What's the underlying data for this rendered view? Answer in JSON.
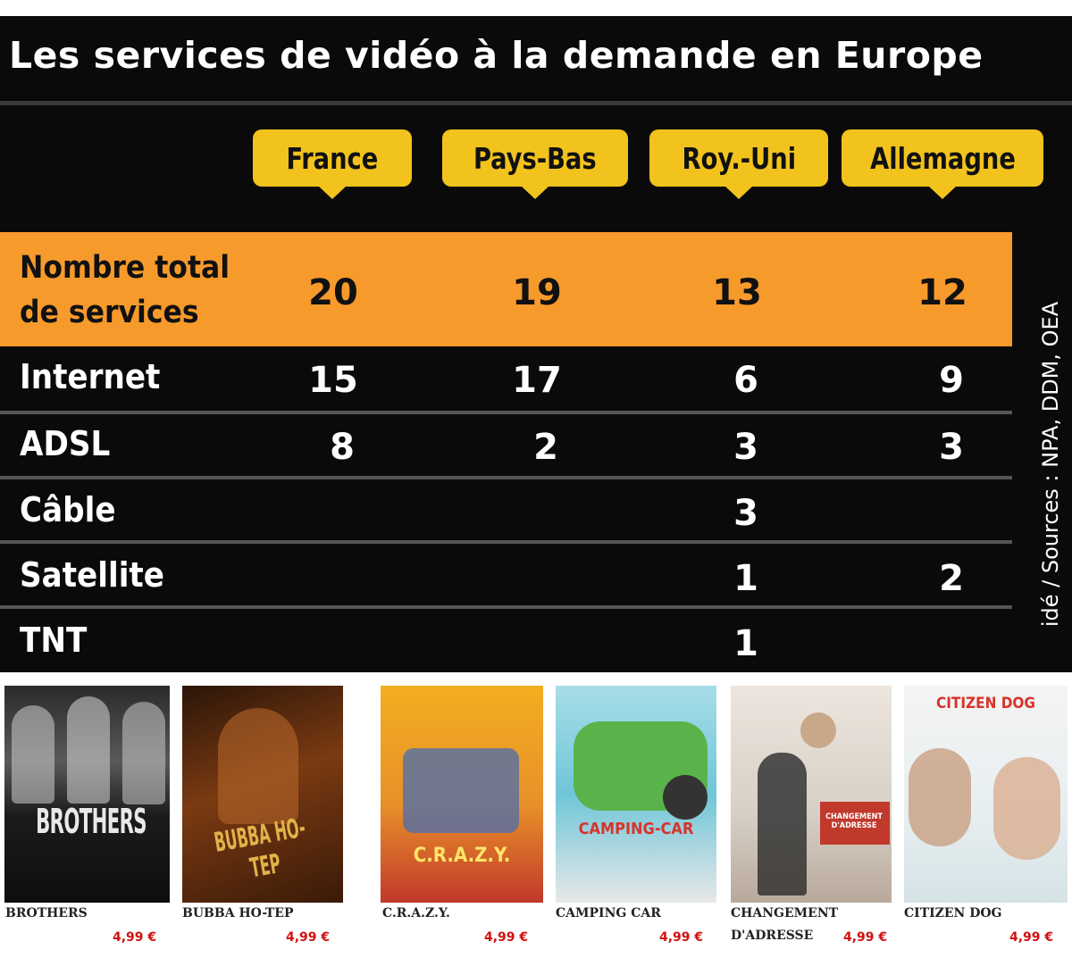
{
  "chart_data": {
    "type": "table",
    "title": "Les services de vidéo à la demande en Europe",
    "columns": [
      "France",
      "Pays-Bas",
      "Roy.-Uni",
      "Allemagne"
    ],
    "total": {
      "label_line1": "Nombre total",
      "label_line2": "de services",
      "values": [
        "20",
        "19",
        "13",
        "12"
      ]
    },
    "rows": [
      {
        "label": "Internet",
        "values": [
          "15",
          "17",
          "6",
          "9"
        ]
      },
      {
        "label": "ADSL",
        "values": [
          "8",
          "2",
          "3",
          "3"
        ]
      },
      {
        "label": "Câble",
        "values": [
          "",
          "",
          "3",
          ""
        ]
      },
      {
        "label": "Satellite",
        "values": [
          "",
          "",
          "1",
          "2"
        ]
      },
      {
        "label": "TNT",
        "values": [
          "",
          "",
          "1",
          ""
        ]
      }
    ],
    "source": "idé / Sources : NPA, DDM, OEA"
  },
  "posters": [
    {
      "caption": "BROTHERS",
      "price": "4,99 €",
      "poster_title": "BROTHERS"
    },
    {
      "caption": "BUBBA HO-TEP",
      "price": "4,99 €",
      "poster_title": "BUBBA HO-TEP"
    },
    {
      "caption": "C.R.A.Z.Y.",
      "price": "4,99 €",
      "poster_title": "C.R.A.Z.Y."
    },
    {
      "caption": "CAMPING CAR",
      "price": "4,99 €",
      "poster_title": "CAMPING-CAR"
    },
    {
      "caption_line1": "CHANGEMENT",
      "caption_line2": "D'ADRESSE",
      "price": "4,99 €",
      "poster_title": "CHANGEMENT D'ADRESSE"
    },
    {
      "caption": "CITIZEN DOG",
      "price": "4,99 €",
      "poster_title": "CITIZEN DOG"
    }
  ],
  "colors": {
    "panel": "#0a0a0a",
    "tab": "#f2c31c",
    "total_row": "#f79a2c",
    "price": "#d01010"
  }
}
